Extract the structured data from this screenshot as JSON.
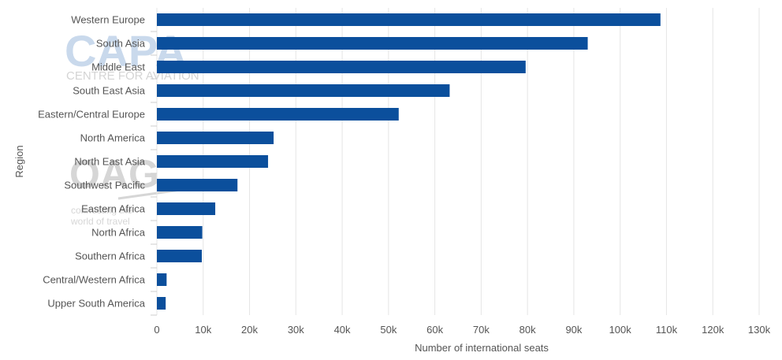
{
  "chart_data": {
    "type": "bar",
    "orientation": "horizontal",
    "categories": [
      "Western Europe",
      "South Asia",
      "Middle East",
      "South East Asia",
      "Eastern/Central Europe",
      "North America",
      "North East Asia",
      "Southwest Pacific",
      "Eastern Africa",
      "North Africa",
      "Southern Africa",
      "Central/Western Africa",
      "Upper South America"
    ],
    "values": [
      108700,
      93000,
      79600,
      63200,
      52200,
      25200,
      24000,
      17400,
      12600,
      9800,
      9700,
      2100,
      1900
    ],
    "xlabel": "Number of international seats",
    "ylabel": "Region",
    "xlim": [
      0,
      130000
    ],
    "x_ticks": [
      "0",
      "10k",
      "20k",
      "30k",
      "40k",
      "50k",
      "60k",
      "70k",
      "80k",
      "90k",
      "100k",
      "110k",
      "120k",
      "130k"
    ],
    "grid": true,
    "bar_color": "#0b4f9c"
  },
  "watermarks": {
    "capa_logo": "CAPA",
    "capa_tagline": "CENTRE FOR AVIATION",
    "oag_logo": "OAG",
    "oag_tagline_1": "connecting the",
    "oag_tagline_2": "world of travel"
  }
}
